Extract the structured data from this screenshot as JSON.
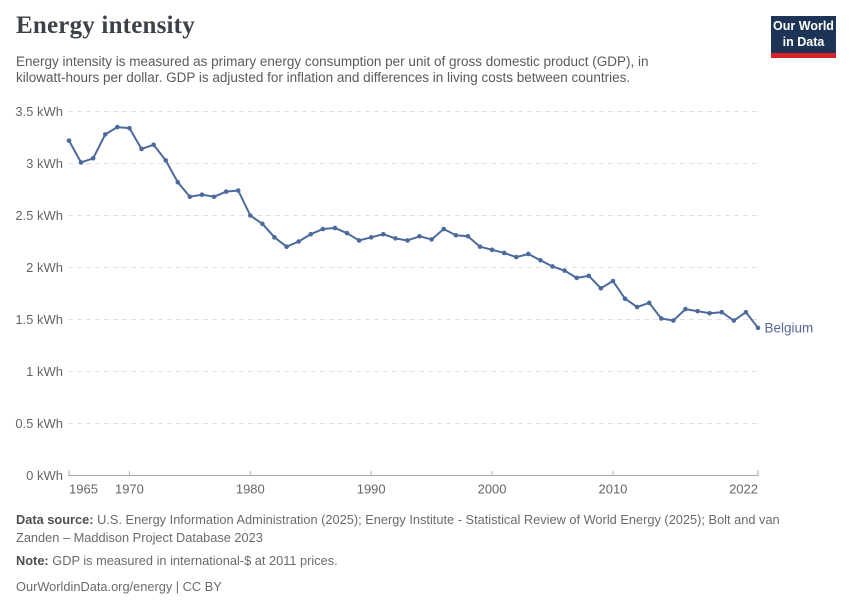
{
  "header": {
    "title": "Energy intensity",
    "logo": {
      "line1": "Our World",
      "line2": "in Data"
    }
  },
  "subtitle": {
    "text": "Energy intensity is measured as primary energy consumption per unit of gross domestic product (GDP), in\nkilowatt-hours per dollar. GDP is adjusted for inflation and differences in living costs between countries."
  },
  "chart_data": {
    "type": "line",
    "title": "Energy intensity",
    "unit": "kWh",
    "xlabel": "",
    "ylabel": "",
    "ylim": [
      0,
      3.5
    ],
    "grid": "horizontal-dashed",
    "legend_position": "end-of-line-label",
    "x": [
      1965,
      1966,
      1967,
      1968,
      1969,
      1970,
      1971,
      1972,
      1973,
      1974,
      1975,
      1976,
      1977,
      1978,
      1979,
      1980,
      1981,
      1982,
      1983,
      1984,
      1985,
      1986,
      1987,
      1988,
      1989,
      1990,
      1991,
      1992,
      1993,
      1994,
      1995,
      1996,
      1997,
      1998,
      1999,
      2000,
      2001,
      2002,
      2003,
      2004,
      2005,
      2006,
      2007,
      2008,
      2009,
      2010,
      2011,
      2012,
      2013,
      2014,
      2015,
      2016,
      2017,
      2018,
      2019,
      2020,
      2021,
      2022
    ],
    "series": [
      {
        "name": "Belgium",
        "color": "#4C6A9C",
        "values": [
          3.22,
          3.01,
          3.05,
          3.28,
          3.35,
          3.34,
          3.14,
          3.18,
          3.03,
          2.82,
          2.68,
          2.7,
          2.68,
          2.73,
          2.74,
          2.5,
          2.42,
          2.29,
          2.2,
          2.25,
          2.32,
          2.37,
          2.38,
          2.33,
          2.26,
          2.29,
          2.32,
          2.28,
          2.26,
          2.3,
          2.27,
          2.37,
          2.31,
          2.3,
          2.2,
          2.17,
          2.14,
          2.1,
          2.13,
          2.07,
          2.01,
          1.97,
          1.9,
          1.92,
          1.8,
          1.87,
          1.7,
          1.62,
          1.66,
          1.51,
          1.49,
          1.6,
          1.58,
          1.56,
          1.57,
          1.49,
          1.57,
          1.42
        ]
      }
    ],
    "yticks": [
      {
        "value": 0,
        "label": "0 kWh"
      },
      {
        "value": 0.5,
        "label": "0.5 kWh"
      },
      {
        "value": 1,
        "label": "1 kWh"
      },
      {
        "value": 1.5,
        "label": "1.5 kWh"
      },
      {
        "value": 2,
        "label": "2 kWh"
      },
      {
        "value": 2.5,
        "label": "2.5 kWh"
      },
      {
        "value": 3,
        "label": "3 kWh"
      },
      {
        "value": 3.5,
        "label": "3.5 kWh"
      }
    ],
    "xticks": [
      {
        "value": 1965,
        "label": "1965"
      },
      {
        "value": 1970,
        "label": "1970"
      },
      {
        "value": 1980,
        "label": "1980"
      },
      {
        "value": 1990,
        "label": "1990"
      },
      {
        "value": 2000,
        "label": "2000"
      },
      {
        "value": 2010,
        "label": "2010"
      },
      {
        "value": 2022,
        "label": "2022"
      }
    ]
  },
  "footer": {
    "source_label": "Data source:",
    "source_text": "U.S. Energy Information Administration (2025); Energy Institute - Statistical Review of World Energy (2025); Bolt and van\nZanden – Maddison Project Database 2023",
    "note_label": "Note:",
    "note_text": "GDP is measured in international-$ at 2011 prices.",
    "license": "OurWorldinData.org/energy | CC BY"
  },
  "colors": {
    "line": "#4C6A9C",
    "end_label": "#56689a",
    "gridline": "#e1e1e1",
    "axis": "#a6a6a6",
    "tick": "#b8b8b8",
    "tick_label": "#666666",
    "logo_navy": "#1d3456",
    "logo_red": "#d8252c"
  }
}
